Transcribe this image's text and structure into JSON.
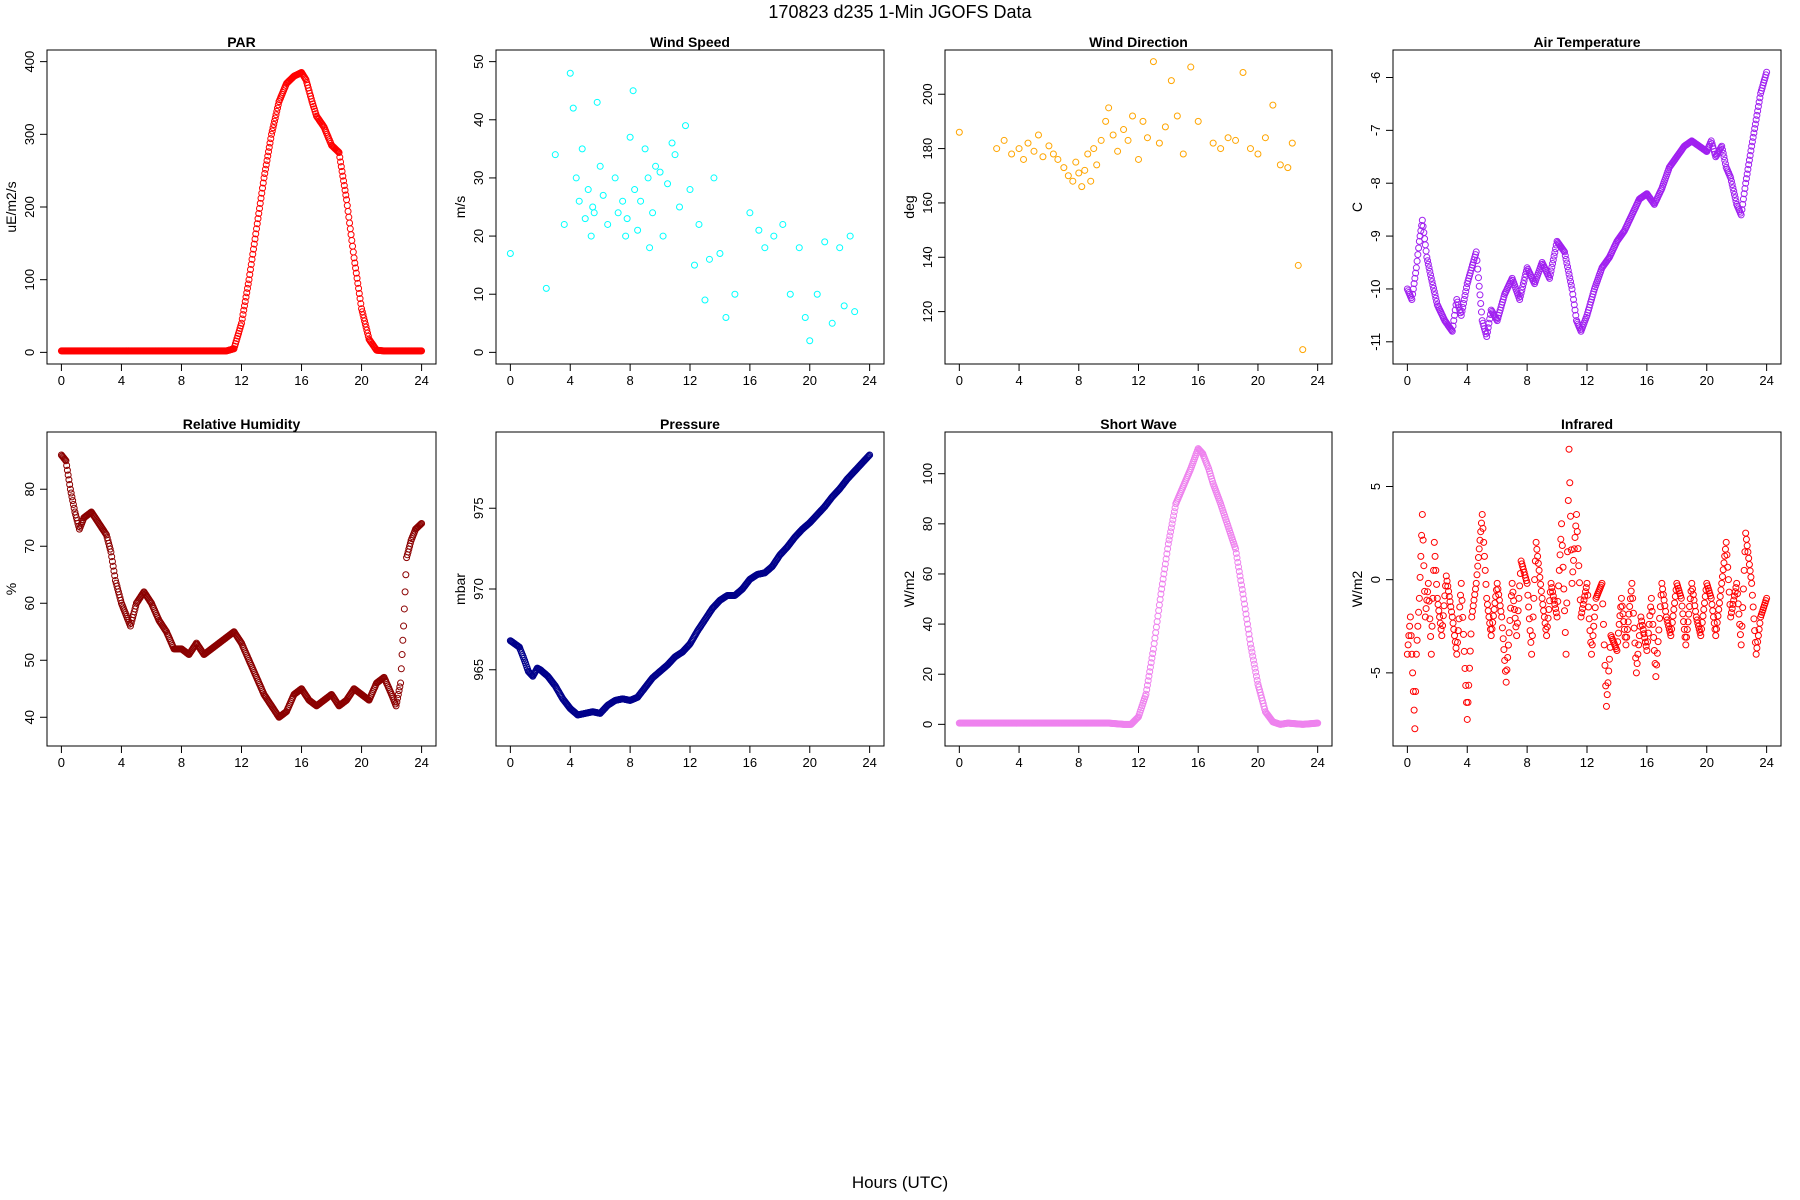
{
  "page": {
    "title": "170823   d235   1-Min  JGOFS Data",
    "xlabel": "Hours (UTC)"
  },
  "chart_data": [
    {
      "type": "scatter",
      "title": "PAR",
      "ylabel": "uE/m2/s",
      "color": "#ff0000",
      "xlim": [
        0,
        24
      ],
      "ylim": [
        0,
        400
      ],
      "xticks": [
        0,
        4,
        8,
        12,
        16,
        20,
        24
      ],
      "yticks": [
        0,
        100,
        200,
        300,
        400
      ],
      "series": [
        {
          "x": [
            0,
            2,
            4,
            6,
            8,
            10,
            11,
            11.5,
            12,
            12.5,
            13,
            13.5,
            14,
            14.5,
            15,
            15.5,
            16,
            16.3,
            16.7,
            17,
            17.5,
            18,
            18.5,
            19,
            19.5,
            20,
            20.5,
            21,
            21.5,
            22,
            23,
            24
          ],
          "y": [
            2,
            2,
            2,
            2,
            2,
            2,
            2,
            5,
            40,
            100,
            170,
            240,
            300,
            345,
            370,
            380,
            385,
            375,
            345,
            325,
            310,
            285,
            275,
            210,
            130,
            60,
            18,
            3,
            2,
            2,
            2,
            2
          ]
        }
      ]
    },
    {
      "type": "scatter",
      "title": "Wind Speed",
      "ylabel": "m/s",
      "color": "#00ffff",
      "xlim": [
        0,
        24
      ],
      "ylim": [
        0,
        50
      ],
      "xticks": [
        0,
        4,
        8,
        12,
        16,
        20,
        24
      ],
      "yticks": [
        0,
        10,
        20,
        30,
        40,
        50
      ],
      "series": [
        {
          "x": [
            0,
            2.4,
            3,
            3.6,
            4,
            4.2,
            4.4,
            4.6,
            4.8,
            5,
            5.2,
            5.4,
            5.5,
            5.6,
            5.8,
            6,
            6.2,
            6.5,
            7,
            7.2,
            7.5,
            7.7,
            7.8,
            8,
            8.2,
            8.3,
            8.5,
            8.7,
            9,
            9.2,
            9.3,
            9.5,
            9.7,
            10,
            10.2,
            10.5,
            10.8,
            11,
            11.3,
            11.7,
            12,
            12.3,
            12.6,
            13,
            13.3,
            13.6,
            14,
            14.4,
            15,
            16,
            16.6,
            17,
            17.6,
            18.2,
            18.7,
            19.3,
            19.7,
            20,
            20.5,
            21,
            21.5,
            22,
            22.3,
            22.7,
            23
          ],
          "y": [
            17,
            11,
            34,
            22,
            48,
            42,
            30,
            26,
            35,
            23,
            28,
            20,
            25,
            24,
            43,
            32,
            27,
            22,
            30,
            24,
            26,
            20,
            23,
            37,
            45,
            28,
            21,
            26,
            35,
            30,
            18,
            24,
            32,
            31,
            20,
            29,
            36,
            34,
            25,
            39,
            28,
            15,
            22,
            9,
            16,
            30,
            17,
            6,
            10,
            24,
            21,
            18,
            20,
            22,
            10,
            18,
            6,
            2,
            10,
            19,
            5,
            18,
            8,
            20,
            7
          ]
        }
      ]
    },
    {
      "type": "scatter",
      "title": "Wind Direction",
      "ylabel": "deg",
      "color": "#ffa500",
      "xlim": [
        0,
        24
      ],
      "ylim": [
        105,
        212
      ],
      "xticks": [
        0,
        4,
        8,
        12,
        16,
        20,
        24
      ],
      "yticks": [
        120,
        140,
        160,
        180,
        200
      ],
      "series": [
        {
          "x": [
            0,
            2.5,
            3,
            3.5,
            4,
            4.3,
            4.6,
            5,
            5.3,
            5.6,
            6,
            6.3,
            6.6,
            7,
            7.3,
            7.6,
            7.8,
            8,
            8.2,
            8.4,
            8.6,
            8.8,
            9,
            9.2,
            9.5,
            9.8,
            10,
            10.3,
            10.6,
            11,
            11.3,
            11.6,
            12,
            12.3,
            12.6,
            13,
            13.4,
            13.8,
            14.2,
            14.6,
            15,
            15.5,
            16,
            17,
            17.5,
            18,
            18.5,
            19,
            19.5,
            20,
            20.5,
            21,
            21.5,
            22,
            22.3,
            22.7,
            23
          ],
          "y": [
            186,
            180,
            183,
            178,
            180,
            176,
            182,
            179,
            185,
            177,
            181,
            178,
            176,
            173,
            170,
            168,
            175,
            171,
            166,
            172,
            178,
            168,
            180,
            174,
            183,
            190,
            195,
            185,
            179,
            187,
            183,
            192,
            176,
            190,
            184,
            212,
            182,
            188,
            205,
            192,
            178,
            210,
            190,
            182,
            180,
            184,
            183,
            208,
            180,
            178,
            184,
            196,
            174,
            173,
            182,
            137,
            106
          ]
        }
      ]
    },
    {
      "type": "scatter",
      "title": "Air Temperature",
      "ylabel": "C",
      "color": "#a020f0",
      "xlim": [
        0,
        24
      ],
      "ylim": [
        -11.2,
        -5.7
      ],
      "xticks": [
        0,
        4,
        8,
        12,
        16,
        20,
        24
      ],
      "yticks": [
        -11,
        -10,
        -9,
        -8,
        -7,
        -6
      ],
      "series": [
        {
          "x": [
            0,
            0.3,
            0.6,
            0.8,
            1,
            1.3,
            1.6,
            2,
            2.5,
            3,
            3.3,
            3.6,
            4,
            4.3,
            4.6,
            5,
            5.3,
            5.6,
            6,
            6.5,
            7,
            7.5,
            8,
            8.5,
            9,
            9.5,
            10,
            10.5,
            11,
            11.3,
            11.6,
            12,
            12.5,
            13,
            13.5,
            14,
            14.5,
            15,
            15.5,
            16,
            16.5,
            17,
            17.5,
            18,
            18.5,
            19,
            19.5,
            20,
            20.3,
            20.6,
            21,
            21.3,
            21.6,
            22,
            22.3,
            22.6,
            23,
            23.3,
            23.6,
            24
          ],
          "y": [
            -10,
            -10.2,
            -9.6,
            -9.1,
            -8.7,
            -9.4,
            -9.8,
            -10.3,
            -10.6,
            -10.8,
            -10.2,
            -10.5,
            -9.9,
            -9.6,
            -9.3,
            -10.6,
            -10.9,
            -10.4,
            -10.6,
            -10.1,
            -9.8,
            -10.2,
            -9.6,
            -9.9,
            -9.5,
            -9.8,
            -9.1,
            -9.3,
            -10,
            -10.6,
            -10.8,
            -10.5,
            -10,
            -9.6,
            -9.4,
            -9.1,
            -8.9,
            -8.6,
            -8.3,
            -8.2,
            -8.4,
            -8.1,
            -7.7,
            -7.5,
            -7.3,
            -7.2,
            -7.3,
            -7.4,
            -7.2,
            -7.5,
            -7.3,
            -7.7,
            -7.9,
            -8.4,
            -8.6,
            -8,
            -7.3,
            -6.8,
            -6.3,
            -5.9
          ]
        }
      ]
    },
    {
      "type": "scatter",
      "title": "Relative Humidity",
      "ylabel": "%",
      "color": "#8b0000",
      "xlim": [
        0,
        24
      ],
      "ylim": [
        37,
        88
      ],
      "xticks": [
        0,
        4,
        8,
        12,
        16,
        20,
        24
      ],
      "yticks": [
        40,
        50,
        60,
        70,
        80
      ],
      "series": [
        {
          "x": [
            0,
            0.3,
            0.6,
            0.9,
            1.2,
            1.5,
            2,
            2.5,
            3,
            3.3,
            3.6,
            4,
            4.3,
            4.6,
            5,
            5.5,
            6,
            6.5,
            7,
            7.5,
            8,
            8.5,
            9,
            9.5,
            10,
            10.5,
            11,
            11.5,
            12,
            12.5,
            13,
            13.5,
            14,
            14.5,
            15,
            15.5,
            16,
            16.5,
            17,
            17.5,
            18,
            18.5,
            19,
            19.5,
            20,
            20.5,
            21,
            21.5,
            22,
            22.3,
            22.6,
            22.8,
            23,
            23.3,
            23.6,
            24
          ],
          "y": [
            86,
            85,
            80,
            76,
            73,
            75,
            76,
            74,
            72,
            69,
            64,
            60,
            58,
            56,
            60,
            62,
            60,
            57,
            55,
            52,
            52,
            51,
            53,
            51,
            52,
            53,
            54,
            55,
            53,
            50,
            47,
            44,
            42,
            40,
            41,
            44,
            45,
            43,
            42,
            43,
            44,
            42,
            43,
            45,
            44,
            43,
            46,
            47,
            44,
            42,
            46,
            56,
            68,
            71,
            73,
            74
          ]
        }
      ]
    },
    {
      "type": "scatter",
      "title": "Pressure",
      "ylabel": "mbar",
      "color": "#00008b",
      "xlim": [
        0,
        24
      ],
      "ylim": [
        961,
        979
      ],
      "xticks": [
        0,
        4,
        8,
        12,
        16,
        20,
        24
      ],
      "yticks": [
        965,
        970,
        975
      ],
      "series": [
        {
          "x": [
            0,
            0.3,
            0.6,
            0.9,
            1.2,
            1.5,
            1.8,
            2,
            2.5,
            3,
            3.5,
            4,
            4.5,
            5,
            5.5,
            6,
            6.5,
            7,
            7.5,
            8,
            8.5,
            9,
            9.5,
            10,
            10.5,
            11,
            11.5,
            12,
            12.5,
            13,
            13.5,
            14,
            14.5,
            15,
            15.5,
            16,
            16.5,
            17,
            17.5,
            18,
            18.5,
            19,
            19.5,
            20,
            20.5,
            21,
            21.5,
            22,
            22.5,
            23,
            23.5,
            24
          ],
          "y": [
            966.8,
            966.6,
            966.4,
            965.7,
            964.9,
            964.6,
            965.1,
            965,
            964.6,
            964,
            963.2,
            962.6,
            962.2,
            962.3,
            962.4,
            962.3,
            962.8,
            963.1,
            963.2,
            963.1,
            963.3,
            963.9,
            964.5,
            964.9,
            965.3,
            965.8,
            966.1,
            966.6,
            967.4,
            968.1,
            968.8,
            969.3,
            969.6,
            969.6,
            970,
            970.6,
            970.9,
            971,
            971.4,
            972.1,
            972.6,
            973.2,
            973.7,
            974.1,
            974.6,
            975.1,
            975.7,
            976.2,
            976.8,
            977.3,
            977.8,
            978.3
          ]
        }
      ]
    },
    {
      "type": "scatter",
      "title": "Short Wave",
      "ylabel": "W/m2",
      "color": "#ee82ee",
      "xlim": [
        0,
        24
      ],
      "ylim": [
        -4,
        112
      ],
      "xticks": [
        0,
        4,
        8,
        12,
        16,
        20,
        24
      ],
      "yticks": [
        0,
        20,
        40,
        60,
        80,
        100
      ],
      "series": [
        {
          "x": [
            0,
            2,
            4,
            6,
            8,
            10,
            11,
            11.5,
            12,
            12.5,
            13,
            13.5,
            14,
            14.5,
            15,
            15.5,
            16,
            16.3,
            16.7,
            17,
            17.5,
            18,
            18.5,
            19,
            19.5,
            20,
            20.5,
            21,
            21.5,
            22,
            23,
            24
          ],
          "y": [
            0.5,
            0.5,
            0.5,
            0.5,
            0.5,
            0.5,
            0,
            0,
            3,
            12,
            30,
            52,
            72,
            88,
            95,
            102,
            110,
            108,
            102,
            96,
            88,
            79,
            70,
            52,
            32,
            16,
            5,
            1,
            0,
            0.5,
            0,
            0.5
          ]
        }
      ]
    },
    {
      "type": "scatter",
      "title": "Infrared",
      "ylabel": "W/m2",
      "color": "#ff0000",
      "xlim": [
        0,
        24
      ],
      "ylim": [
        -8.3,
        7.3
      ],
      "xticks": [
        0,
        4,
        8,
        12,
        16,
        20,
        24
      ],
      "yticks": [
        -5,
        0,
        5
      ],
      "series": [
        {
          "x": [
            0,
            0.2,
            0.4,
            0.5,
            0.6,
            0.8,
            1,
            1.2,
            1.4,
            1.6,
            1.8,
            2,
            2.3,
            2.6,
            3,
            3.3,
            3.6,
            4,
            4.3,
            4.6,
            5,
            5.3,
            5.6,
            6,
            6.3,
            6.6,
            7,
            7.3,
            7.6,
            8,
            8.3,
            8.6,
            9,
            9.3,
            9.6,
            10,
            10.3,
            10.6,
            10.8,
            11,
            11.3,
            11.6,
            12,
            12.3,
            12.6,
            13,
            13.3,
            13.6,
            14,
            14.3,
            14.6,
            15,
            15.3,
            15.6,
            16,
            16.3,
            16.6,
            17,
            17.3,
            17.6,
            18,
            18.3,
            18.6,
            19,
            19.3,
            19.6,
            20,
            20.3,
            20.6,
            21,
            21.3,
            21.6,
            22,
            22.3,
            22.6,
            23,
            23.3,
            23.6,
            24
          ],
          "y": [
            -4,
            -2,
            -6,
            -8,
            -4,
            -1,
            3.5,
            -2,
            -0.2,
            -4,
            2,
            -1,
            -3,
            0.2,
            -2,
            -4,
            -0.2,
            -7.5,
            -2,
            -0.2,
            3.5,
            -1,
            -3,
            -0.2,
            -2,
            -5.5,
            -0.2,
            -3,
            1,
            -0.2,
            -4,
            2,
            -1,
            -3,
            -0.2,
            -2,
            3,
            -4,
            7,
            -0.2,
            3.5,
            -2,
            -0.2,
            -4,
            -1,
            -0.2,
            -6.8,
            -3,
            -3.8,
            -1,
            -3.5,
            -0.2,
            -5,
            -2,
            -3.8,
            -1,
            -5.2,
            -0.2,
            -2,
            -3,
            -0.2,
            -1,
            -3.5,
            -0.2,
            -2,
            -3,
            -0.2,
            -1,
            -3,
            -0.2,
            2,
            -2,
            -0.2,
            -3.5,
            2.5,
            -0.2,
            -4,
            -2,
            -1
          ]
        }
      ]
    }
  ]
}
